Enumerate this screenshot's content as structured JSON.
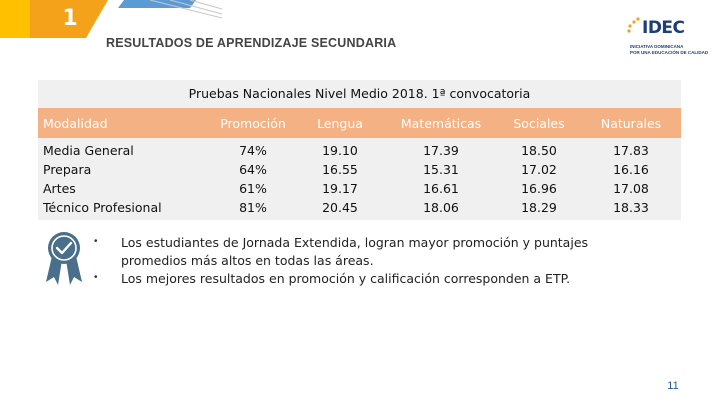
{
  "slide": {
    "number_top": "1",
    "header_title": "RESULTADOS DE APRENDIZAJE SECUNDARIA",
    "logo": {
      "name": "IDEC",
      "subtitle_line1": "INICIATIVA DOMINICANA",
      "subtitle_line2": "POR UNA EDUCACIÓN DE CALIDAD"
    },
    "page_number": "11"
  },
  "colors": {
    "accent_orange": "#f4b183",
    "corner_orange": "#f5a21b",
    "corner_yellow": "#ffc000",
    "corner_blue": "#5b9bd5",
    "panel_gray": "#f0f0f0",
    "badge_blue": "#4a6f8a"
  },
  "table": {
    "title": "Pruebas Nacionales Nivel Medio 2018. 1ª convocatoria",
    "headers": {
      "modalidad": "Modalidad",
      "promocion": "Promoción",
      "lengua": "Lengua",
      "matematicas": "Matemáticas",
      "sociales": "Sociales",
      "naturales": "Naturales"
    },
    "rows": [
      {
        "modalidad": "Media General",
        "promocion": "74%",
        "lengua": "19.10",
        "matematicas": "17.39",
        "sociales": "18.50",
        "naturales": "17.83"
      },
      {
        "modalidad": "Prepara",
        "promocion": "64%",
        "lengua": "16.55",
        "matematicas": "15.31",
        "sociales": "17.02",
        "naturales": "16.16"
      },
      {
        "modalidad": "Artes",
        "promocion": "61%",
        "lengua": "19.17",
        "matematicas": "16.61",
        "sociales": "16.96",
        "naturales": "17.08"
      },
      {
        "modalidad": "Técnico Profesional",
        "promocion": "81%",
        "lengua": "20.45",
        "matematicas": "18.06",
        "sociales": "18.29",
        "naturales": "18.33"
      }
    ]
  },
  "notes": {
    "icon": "award-badge-icon",
    "bullets": [
      {
        "symbol": "•",
        "line1": "Los estudiantes de Jornada Extendida, logran mayor promoción y puntajes",
        "line2": "promedios más altos en todas las áreas."
      },
      {
        "symbol": "•",
        "line1": "Los mejores resultados en promoción y calificación corresponden a ETP.",
        "line2": ""
      }
    ]
  }
}
